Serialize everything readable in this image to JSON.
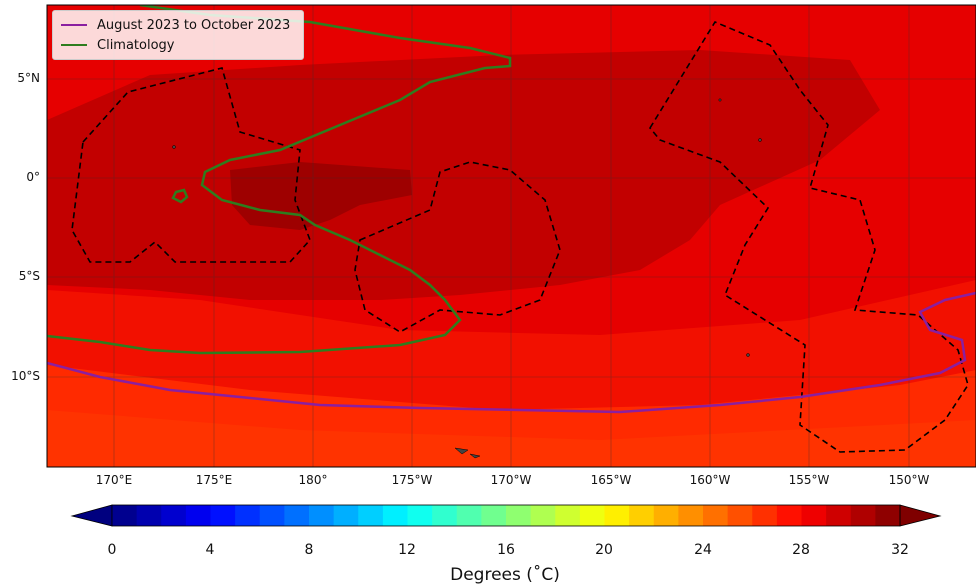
{
  "legend": {
    "items": [
      {
        "label": "August 2023 to October 2023",
        "color": "#8b1fa0"
      },
      {
        "label": "Climatology",
        "color": "#2e7d1e"
      }
    ]
  },
  "axes": {
    "lat_labels": [
      "5°N",
      "0°",
      "5°S",
      "10°S"
    ],
    "lon_labels": [
      "170°E",
      "175°E",
      "180°",
      "175°W",
      "170°W",
      "165°W",
      "160°W",
      "155°W",
      "150°W"
    ]
  },
  "colorbar": {
    "label": "Degrees ($^\\circ$C)",
    "display_label": "Degrees (˚C)",
    "ticks": [
      "0",
      "4",
      "8",
      "12",
      "16",
      "20",
      "24",
      "28",
      "32"
    ],
    "range": [
      0,
      32
    ],
    "extend": "both",
    "colormap": "jet-to-darkred"
  },
  "colors": {
    "sst_warmest": "#9e0000",
    "sst_warm": "#c20000",
    "sst_main": "#e60000",
    "sst_cooler": "#ff1a00",
    "sst_coolest": "#ff3300",
    "contour_dashed": "#000000",
    "current_contour": "#8b1fa0",
    "climatology_contour": "#2e7d1e"
  }
}
